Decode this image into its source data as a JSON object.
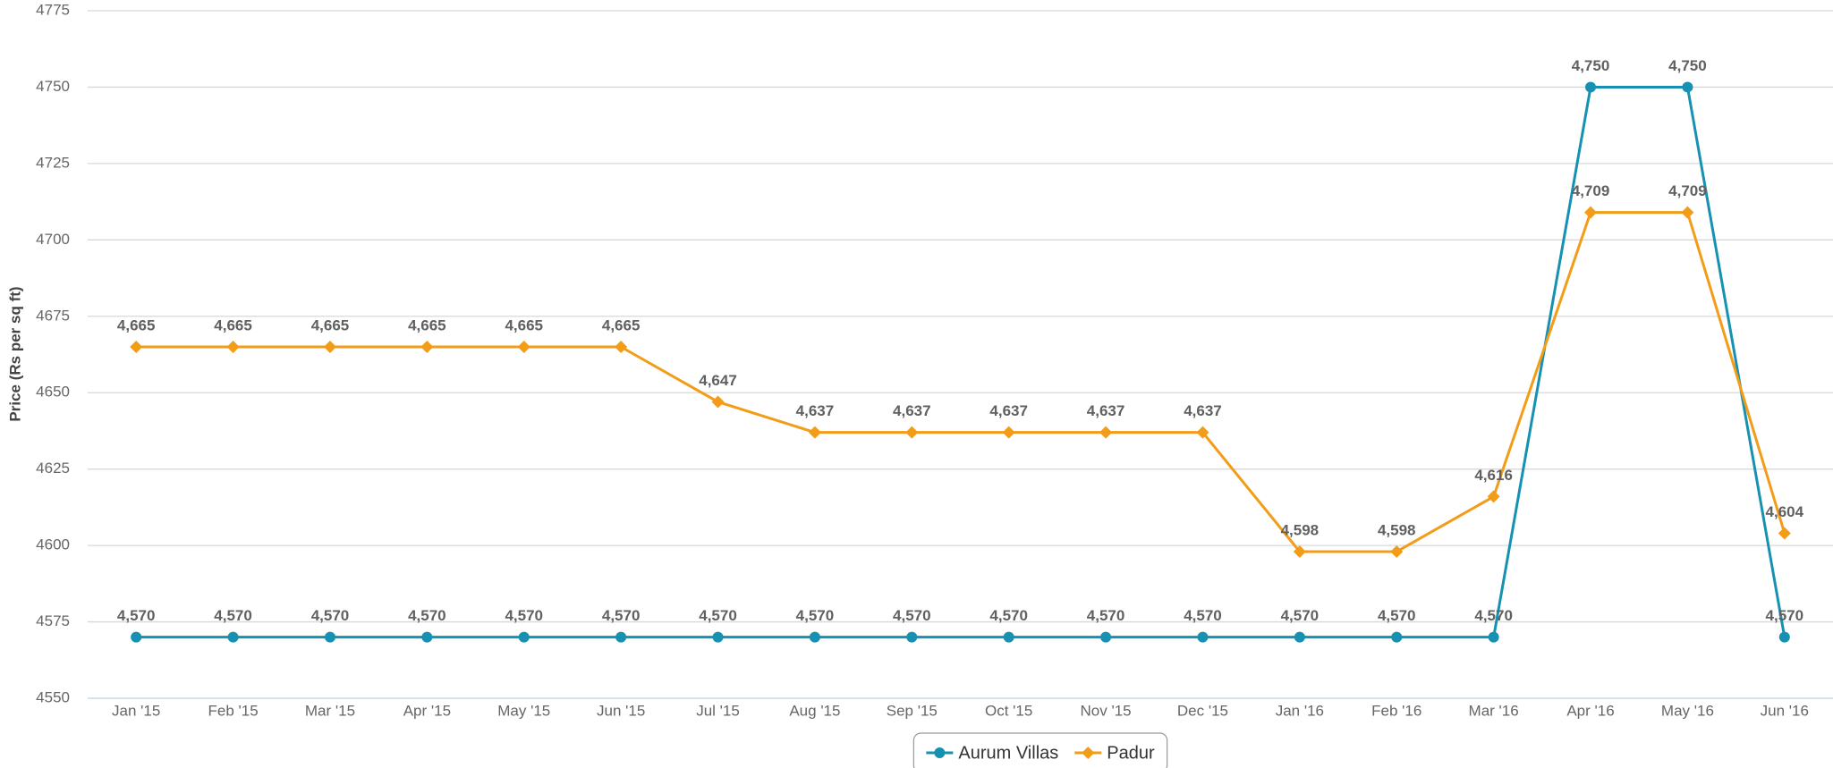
{
  "chart_data": {
    "type": "line",
    "y_label": "Price (Rs per sq ft)",
    "categories": [
      "Jan '15",
      "Feb '15",
      "Mar '15",
      "Apr '15",
      "May '15",
      "Jun '15",
      "Jul '15",
      "Aug '15",
      "Sep '15",
      "Oct '15",
      "Nov '15",
      "Dec '15",
      "Jan '16",
      "Feb '16",
      "Mar '16",
      "Apr '16",
      "May '16",
      "Jun '16"
    ],
    "series": [
      {
        "name": "Aurum Villas",
        "color": "#1691b1",
        "marker": "circle",
        "values": [
          4570,
          4570,
          4570,
          4570,
          4570,
          4570,
          4570,
          4570,
          4570,
          4570,
          4570,
          4570,
          4570,
          4570,
          4570,
          4750,
          4750,
          4570
        ],
        "value_labels": [
          "4,570",
          "4,570",
          "4,570",
          "4,570",
          "4,570",
          "4,570",
          "4,570",
          "4,570",
          "4,570",
          "4,570",
          "4,570",
          "4,570",
          "4,570",
          "4,570",
          "4,570",
          "4,750",
          "4,750",
          "4,570"
        ]
      },
      {
        "name": "Padur",
        "color": "#f39c18",
        "marker": "diamond",
        "values": [
          4665,
          4665,
          4665,
          4665,
          4665,
          4665,
          4647,
          4637,
          4637,
          4637,
          4637,
          4637,
          4598,
          4598,
          4616,
          4709,
          4709,
          4604
        ],
        "value_labels": [
          "4,665",
          "4,665",
          "4,665",
          "4,665",
          "4,665",
          "4,665",
          "4,647",
          "4,637",
          "4,637",
          "4,637",
          "4,637",
          "4,637",
          "4,598",
          "4,598",
          "4,616",
          "4,709",
          "4,709",
          "4,604"
        ]
      }
    ],
    "ylim": [
      4550,
      4775
    ],
    "yticks": [
      4550,
      4575,
      4600,
      4625,
      4650,
      4675,
      4700,
      4725,
      4750,
      4775
    ],
    "grid": true,
    "legend": "bottom"
  }
}
